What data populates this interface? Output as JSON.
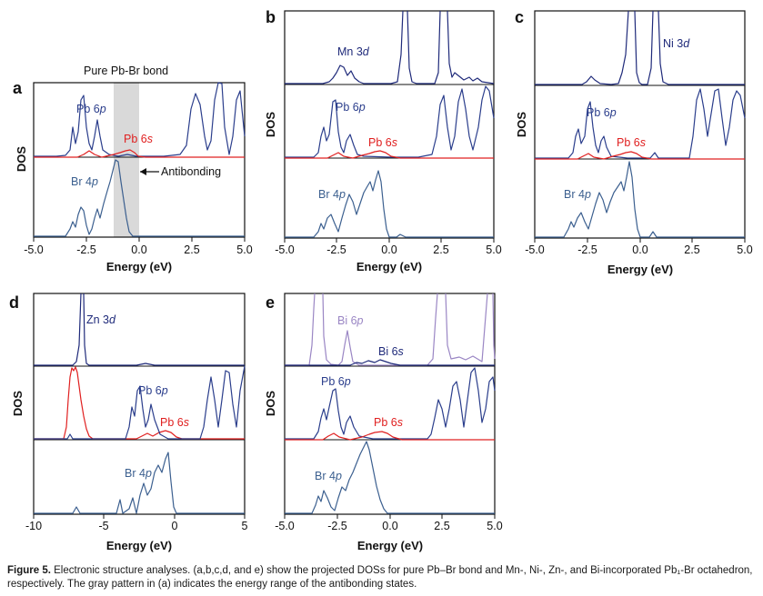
{
  "figure": {
    "panels": [
      {
        "id": "a",
        "letter": "a",
        "title": "Pure Pb-Br bond",
        "ylabel": "DOS",
        "xlabel": "Energy (eV)",
        "xlim": [
          -5,
          5
        ],
        "tick_labels": [
          "-5.0",
          "-2.5",
          "0.0",
          "2.5",
          "5.0"
        ],
        "upper": {
          "labels": [
            {
              "text": "Pb 6",
              "ital": "p",
              "color": "#2b3e8c"
            },
            {
              "text": "Pb 6",
              "ital": "s",
              "color": "#e02020"
            }
          ]
        },
        "lower": {
          "labels": [
            {
              "text": "Br 4",
              "ital": "p",
              "color": "#3b5f8f"
            }
          ]
        },
        "annotation": "Antibonding",
        "shade_range": [
          -1.2,
          0.0
        ]
      },
      {
        "id": "b",
        "letter": "b",
        "ylabel": "DOS",
        "xlabel": "Energy (eV)",
        "xlim": [
          -5,
          5
        ],
        "tick_labels": [
          "-5.0",
          "-2.5",
          "0.0",
          "2.5",
          "5.0"
        ],
        "top": {
          "labels": [
            {
              "text": "Mn 3",
              "ital": "d",
              "color": "#1f2a7a"
            }
          ]
        },
        "upper": {
          "labels": [
            {
              "text": "Pb 6",
              "ital": "p",
              "color": "#2b3e8c"
            },
            {
              "text": "Pb 6",
              "ital": "s",
              "color": "#e02020"
            }
          ]
        },
        "lower": {
          "labels": [
            {
              "text": "Br 4",
              "ital": "p",
              "color": "#3b5f8f"
            }
          ]
        }
      },
      {
        "id": "c",
        "letter": "c",
        "ylabel": "DOS",
        "xlabel": "Energy (eV)",
        "xlim": [
          -5,
          5
        ],
        "tick_labels": [
          "-5.0",
          "-2.5",
          "0.0",
          "2.5",
          "5.0"
        ],
        "top": {
          "labels": [
            {
              "text": "Ni 3",
              "ital": "d",
              "color": "#1f2a7a"
            }
          ]
        },
        "upper": {
          "labels": [
            {
              "text": "Pb 6",
              "ital": "p",
              "color": "#2b3e8c"
            },
            {
              "text": "Pb 6",
              "ital": "s",
              "color": "#e02020"
            }
          ]
        },
        "lower": {
          "labels": [
            {
              "text": "Br 4",
              "ital": "p",
              "color": "#3b5f8f"
            }
          ]
        }
      },
      {
        "id": "d",
        "letter": "d",
        "ylabel": "DOS",
        "xlabel": "Energy (eV)",
        "xlim": [
          -10,
          5
        ],
        "tick_labels": [
          "-10",
          "-5",
          "0",
          "5"
        ],
        "top": {
          "labels": [
            {
              "text": "Zn 3",
              "ital": "d",
              "color": "#1f2a7a"
            }
          ]
        },
        "upper": {
          "labels": [
            {
              "text": "Pb 6",
              "ital": "p",
              "color": "#2b3e8c"
            },
            {
              "text": "Pb 6",
              "ital": "s",
              "color": "#e02020"
            }
          ]
        },
        "lower": {
          "labels": [
            {
              "text": "Br 4",
              "ital": "p",
              "color": "#3b5f8f"
            }
          ]
        }
      },
      {
        "id": "e",
        "letter": "e",
        "ylabel": "DOS",
        "xlabel": "Energy (eV)",
        "xlim": [
          -5,
          5
        ],
        "tick_labels": [
          "-5.0",
          "-2.5",
          "0.0",
          "2.5",
          "5.0"
        ],
        "top": {
          "labels": [
            {
              "text": "Bi 6",
              "ital": "p",
              "color": "#9a86c4"
            },
            {
              "text": "Bi 6",
              "ital": "s",
              "color": "#1f2a7a"
            }
          ]
        },
        "upper": {
          "labels": [
            {
              "text": "Pb 6",
              "ital": "p",
              "color": "#2b3e8c"
            },
            {
              "text": "Pb 6",
              "ital": "s",
              "color": "#e02020"
            }
          ]
        },
        "lower": {
          "labels": [
            {
              "text": "Br 4",
              "ital": "p",
              "color": "#3b5f8f"
            }
          ]
        }
      }
    ],
    "colors": {
      "pb6p": "#2b3e8c",
      "pb6s": "#e02020",
      "br4p": "#3b5f8f",
      "metal_d": "#1f2a7a",
      "bi6p": "#9a86c4",
      "shade": "#d9d9d9"
    }
  },
  "caption": {
    "lead": "Figure 5.",
    "text": "Electronic structure analyses. (a,b,c,d, and e) show the projected DOSs for pure Pb–Br bond and Mn-, Ni-, Zn-, and Bi-incorporated Pb₁-Br octahedron, respectively. The gray pattern in (a) indicates the energy range of the antibonding states."
  }
}
